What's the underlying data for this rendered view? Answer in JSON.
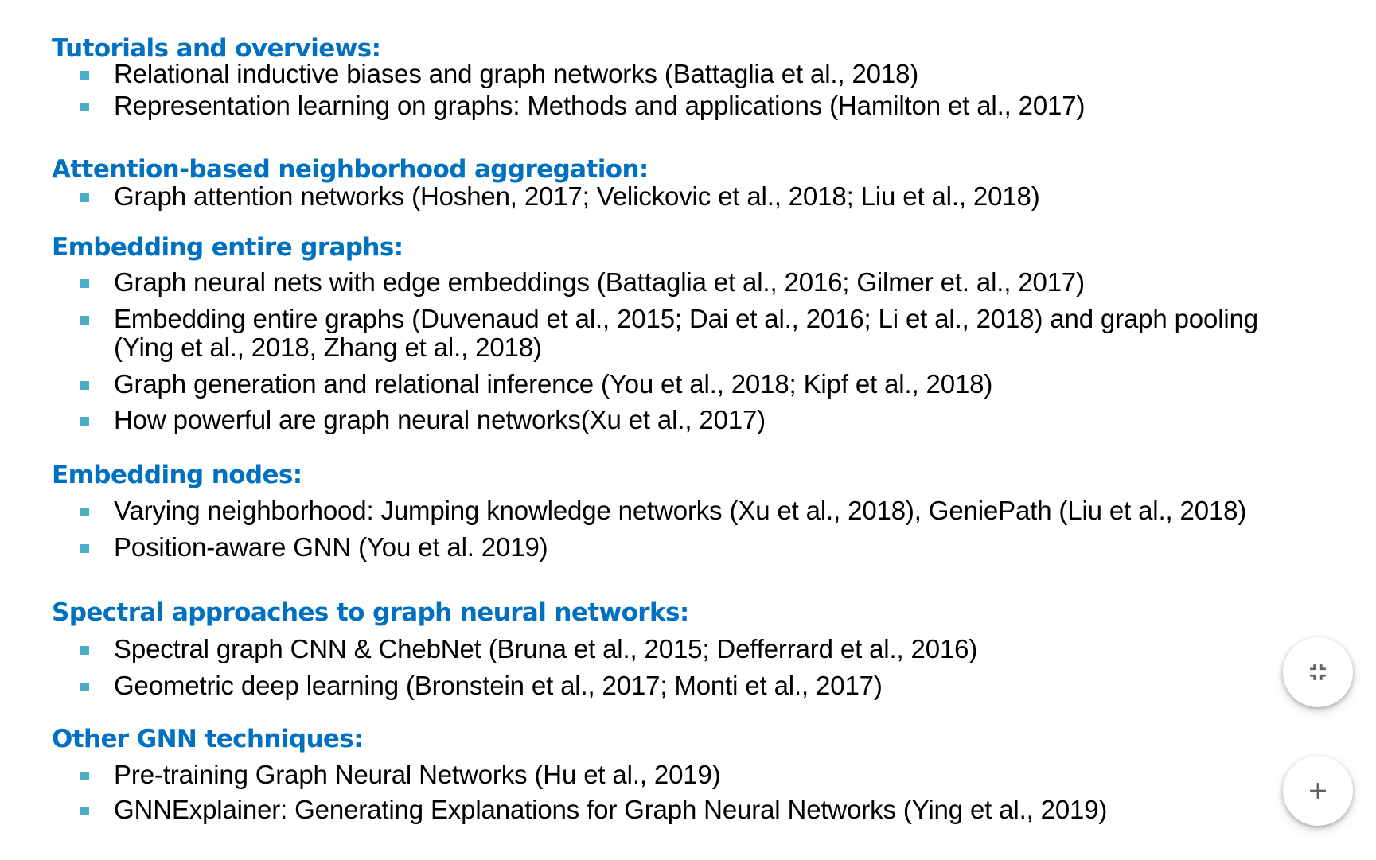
{
  "sections": [
    {
      "heading": "Tutorials and overviews:",
      "items": [
        "Relational inductive biases and graph networks (Battaglia et al., 2018)",
        "Representation learning on graphs: Methods and applications (Hamilton et al., 2017)"
      ]
    },
    {
      "heading": "Attention-based neighborhood aggregation:",
      "items": [
        "Graph attention networks (Hoshen, 2017; Velickovic et al., 2018; Liu et al., 2018)"
      ]
    },
    {
      "heading": "Embedding entire graphs:",
      "items": [
        "Graph neural nets with edge embeddings (Battaglia et al., 2016; Gilmer et. al., 2017)",
        "Embedding entire graphs (Duvenaud et al., 2015; Dai et al., 2016; Li et al., 2018) and graph pooling",
        "(Ying et al., 2018,  Zhang et al., 2018)",
        "Graph generation and relational inference (You et al., 2018; Kipf et al., 2018)",
        "How powerful are graph neural networks(Xu et al., 2017)"
      ]
    },
    {
      "heading": "Embedding nodes:",
      "items": [
        "Varying neighborhood: Jumping knowledge networks (Xu et al., 2018), GeniePath (Liu et al., 2018)",
        "Position-aware GNN (You et al. 2019)"
      ]
    },
    {
      "heading": "Spectral approaches to graph neural networks:",
      "items": [
        "Spectral graph CNN & ChebNet (Bruna et al., 2015; Defferrard et al., 2016)",
        "Geometric deep learning (Bronstein et al., 2017; Monti et al., 2017)"
      ]
    },
    {
      "heading": "Other GNN techniques:",
      "items": [
        "Pre-training Graph Neural Networks (Hu et al., 2019)",
        "GNNExplainer: Generating Explanations for Graph Neural Networks (Ying et al., 2019)"
      ]
    }
  ],
  "controls": {
    "exit_fullscreen_icon": "exit-fullscreen-icon",
    "zoom_in_icon": "plus-icon"
  },
  "colors": {
    "heading": "#0070c0",
    "bullet": "#4bacc6",
    "text": "#000000",
    "background": "#ffffff"
  }
}
